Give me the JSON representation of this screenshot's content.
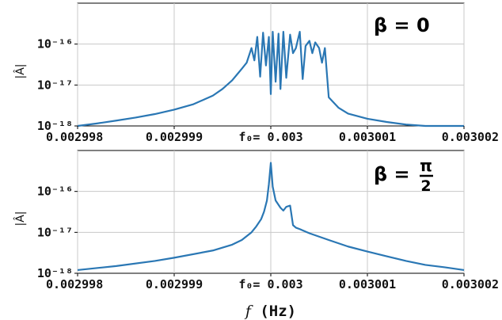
{
  "chart_data": [
    {
      "type": "line",
      "annotation": "β = 0",
      "ylabel": "|Â|",
      "yscale": "log",
      "ylim": [
        1e-18,
        1e-15
      ],
      "xlim": [
        0.002998,
        0.003002
      ],
      "xticks": [
        0.002998,
        0.002999,
        0.003,
        0.003001,
        0.003002
      ],
      "xtick_labels": [
        "0.002998",
        "0.002999",
        "f₀= 0.003",
        "0.003001",
        "0.003002"
      ],
      "yticks": [
        1e-18,
        1e-17,
        1e-16
      ],
      "ytick_labels": [
        "10⁻¹⁸",
        "10⁻¹⁷",
        "10⁻¹⁶"
      ],
      "grid": true,
      "color": "#2a77b4",
      "series": [
        {
          "x": [
            0.002998,
            0.0029982,
            0.0029984,
            0.0029986,
            0.0029988,
            0.002999,
            0.0029992,
            0.0029994,
            0.0029995,
            0.0029996,
            0.00299965,
            0.0029997,
            0.00299975,
            0.0029998,
            0.00299983,
            0.00299986,
            0.00299989,
            0.00299992,
            0.00299995,
            0.00299998,
            0.003,
            0.00300002,
            0.00300005,
            0.00300008,
            0.0030001,
            0.00300013,
            0.00300016,
            0.0030002,
            0.00300023,
            0.00300026,
            0.0030003,
            0.00300033,
            0.00300036,
            0.0030004,
            0.00300043,
            0.00300046,
            0.0030005,
            0.00300053,
            0.00300056,
            0.0030006,
            0.0030007,
            0.0030008,
            0.003001,
            0.0030012,
            0.0030014,
            0.0030016,
            0.0030018,
            0.003002
          ],
          "y": [
            1e-18,
            1.15e-18,
            1.35e-18,
            1.6e-18,
            1.95e-18,
            2.5e-18,
            3.4e-18,
            5.5e-18,
            8e-18,
            1.3e-17,
            1.8e-17,
            2.5e-17,
            3.5e-17,
            8e-17,
            4e-17,
            1.5e-16,
            1.6e-17,
            1.9e-16,
            3e-17,
            1.5e-16,
            6e-18,
            2e-16,
            1.2e-17,
            1.8e-16,
            8e-18,
            2e-16,
            1.5e-17,
            1.7e-16,
            6e-17,
            8e-17,
            2e-16,
            1.4e-17,
            9e-17,
            1.2e-16,
            6e-17,
            1.1e-16,
            8e-17,
            3.5e-17,
            8e-17,
            5e-18,
            2.8e-18,
            2e-18,
            1.5e-18,
            1.25e-18,
            1.08e-18,
            1e-18,
            9.5e-19,
            9e-19
          ]
        }
      ]
    },
    {
      "type": "line",
      "annotation_lhs": "β =",
      "annotation_num": "π",
      "annotation_den": "2",
      "ylabel": "|Â|",
      "xlabel_f": "f",
      "xlabel_unit": " (Hz)",
      "yscale": "log",
      "ylim": [
        1e-18,
        1e-15
      ],
      "xlim": [
        0.002998,
        0.003002
      ],
      "xticks": [
        0.002998,
        0.002999,
        0.003,
        0.003001,
        0.003002
      ],
      "xtick_labels": [
        "0.002998",
        "0.002999",
        "f₀= 0.003",
        "0.003001",
        "0.003002"
      ],
      "yticks": [
        1e-18,
        1e-17,
        1e-16
      ],
      "ytick_labels": [
        "10⁻¹⁸",
        "10⁻¹⁷",
        "10⁻¹⁶"
      ],
      "grid": true,
      "color": "#2a77b4",
      "series": [
        {
          "x": [
            0.002998,
            0.0029984,
            0.0029988,
            0.002999,
            0.0029994,
            0.0029996,
            0.0029997,
            0.0029998,
            0.00299985,
            0.0029999,
            0.00299993,
            0.00299996,
            0.00299998,
            0.003,
            0.00300002,
            0.00300005,
            0.0030001,
            0.00300013,
            0.00300016,
            0.0030002,
            0.00300023,
            0.00300026,
            0.0030003,
            0.0030004,
            0.0030006,
            0.0030008,
            0.003001,
            0.0030012,
            0.0030014,
            0.0030016,
            0.0030018,
            0.003002
          ],
          "y": [
            1.2e-18,
            1.5e-18,
            2e-18,
            2.4e-18,
            3.6e-18,
            5e-18,
            6.5e-18,
            1e-17,
            1.4e-17,
            2.1e-17,
            3.2e-17,
            6e-17,
            1.5e-16,
            5e-16,
            1.3e-16,
            6e-17,
            4e-17,
            3.4e-17,
            4.2e-17,
            4.5e-17,
            1.5e-17,
            1.3e-17,
            1.2e-17,
            9.5e-18,
            6.5e-18,
            4.5e-18,
            3.4e-18,
            2.6e-18,
            2e-18,
            1.6e-18,
            1.4e-18,
            1.2e-18
          ]
        }
      ]
    }
  ]
}
